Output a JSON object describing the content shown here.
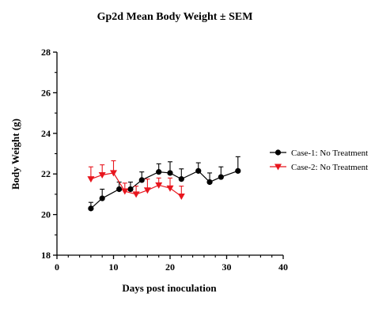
{
  "chart_data": {
    "type": "line",
    "title": "Gp2d Mean Body Weight ± SEM",
    "xlabel": "Days post inoculation",
    "ylabel": "Body Weight (g)",
    "xlim": [
      0,
      40
    ],
    "ylim": [
      18,
      28
    ],
    "xticks": [
      "0",
      "10",
      "20",
      "30",
      "40"
    ],
    "yticks": [
      "18",
      "20",
      "22",
      "24",
      "26",
      "28"
    ],
    "grid": false,
    "legend_position": "right",
    "error_bars": "SEM",
    "series": [
      {
        "name": "Case-1: No Treatment",
        "color": "#000000",
        "marker": "circle",
        "x": [
          6,
          8,
          11,
          13,
          15,
          18,
          20,
          22,
          25,
          27,
          29,
          32
        ],
        "y": [
          20.3,
          20.8,
          21.25,
          21.25,
          21.7,
          22.1,
          22.05,
          21.75,
          22.15,
          21.6,
          21.85,
          22.15
        ],
        "sem": [
          0.3,
          0.45,
          0.35,
          0.35,
          0.4,
          0.4,
          0.55,
          0.5,
          0.4,
          0.45,
          0.5,
          0.7
        ]
      },
      {
        "name": "Case-2: No Treatment",
        "color": "#e8161e",
        "marker": "triangle-down",
        "x": [
          6,
          8,
          10,
          12,
          14,
          16,
          18,
          20,
          22
        ],
        "y": [
          21.75,
          21.95,
          22.05,
          21.15,
          21.0,
          21.2,
          21.45,
          21.3,
          20.9
        ],
        "sem": [
          0.6,
          0.5,
          0.6,
          0.4,
          0.4,
          0.55,
          0.35,
          0.5,
          0.5
        ]
      }
    ]
  }
}
